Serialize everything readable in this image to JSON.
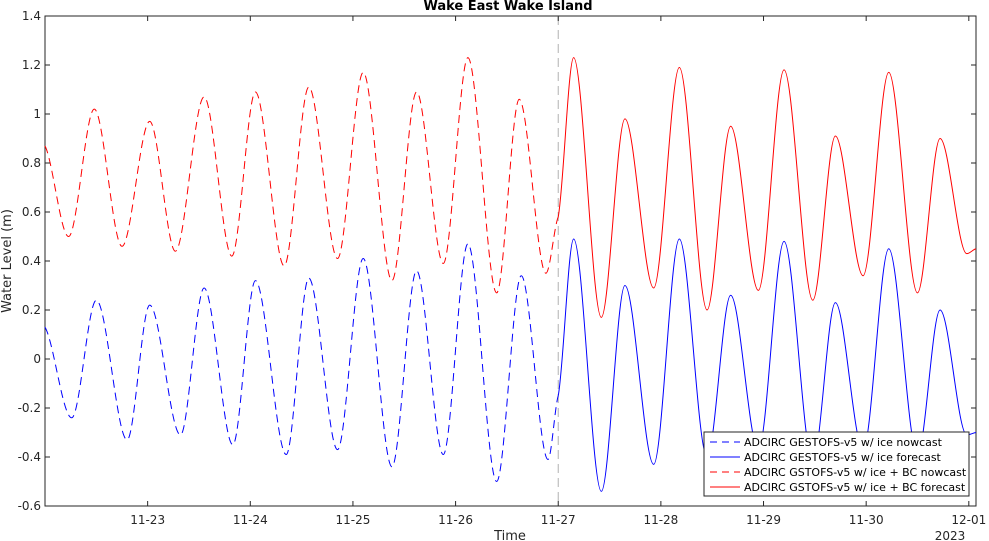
{
  "chart_data": {
    "type": "line",
    "title": "Wake East Wake Island",
    "xlabel": "Time",
    "ylabel": "Water Level (m)",
    "xlim_days_from_nov22": [
      0,
      9.07
    ],
    "ylim": [
      -0.6,
      1.4
    ],
    "yticks": [
      -0.6,
      -0.4,
      -0.2,
      0,
      0.2,
      0.4,
      0.6,
      0.8,
      1,
      1.2,
      1.4
    ],
    "xticks": [
      {
        "label": "11-23",
        "value": 1
      },
      {
        "label": "11-24",
        "value": 2
      },
      {
        "label": "11-25",
        "value": 3
      },
      {
        "label": "11-26",
        "value": 4
      },
      {
        "label": "11-27",
        "value": 5
      },
      {
        "label": "11-28",
        "value": 6
      },
      {
        "label": "11-29",
        "value": 7
      },
      {
        "label": "11-30",
        "value": 8
      },
      {
        "label": "12-01",
        "value": 9
      }
    ],
    "xaxis_year_label": "2023",
    "nowcast_forecast_boundary": 5,
    "legend_location": "bottom-right",
    "grid": false,
    "series": [
      {
        "name": "ADCIRC GESTOFS-v5 w/ ice nowcast",
        "color": "#0000ff",
        "style": "dashed",
        "x": [
          0.0,
          0.26,
          0.5,
          0.8,
          1.02,
          1.32,
          1.55,
          1.83,
          2.05,
          2.35,
          2.57,
          2.85,
          3.1,
          3.38,
          3.62,
          3.88,
          4.12,
          4.4,
          4.64,
          4.9,
          5.0
        ],
        "y": [
          0.13,
          -0.24,
          0.24,
          -0.33,
          0.22,
          -0.31,
          0.29,
          -0.35,
          0.32,
          -0.39,
          0.33,
          -0.37,
          0.41,
          -0.44,
          0.36,
          -0.39,
          0.47,
          -0.5,
          0.34,
          -0.41,
          -0.15
        ]
      },
      {
        "name": "ADCIRC GESTOFS-v5 w/ ice forecast",
        "color": "#0000ff",
        "style": "solid",
        "x": [
          5.0,
          5.15,
          5.42,
          5.65,
          5.93,
          6.18,
          6.45,
          6.68,
          6.95,
          7.2,
          7.48,
          7.7,
          7.97,
          8.22,
          8.5,
          8.72,
          8.98,
          9.07
        ],
        "y": [
          -0.15,
          0.49,
          -0.54,
          0.3,
          -0.43,
          0.49,
          -0.4,
          0.26,
          -0.37,
          0.48,
          -0.42,
          0.23,
          -0.37,
          0.45,
          -0.39,
          0.2,
          -0.31,
          -0.3
        ]
      },
      {
        "name": "ADCIRC GSTOFS-v5 w/ ice + BC nowcast",
        "color": "#ff0000",
        "style": "dashed",
        "x": [
          0.0,
          0.23,
          0.48,
          0.75,
          1.02,
          1.27,
          1.55,
          1.82,
          2.05,
          2.33,
          2.57,
          2.85,
          3.1,
          3.38,
          3.62,
          3.88,
          4.12,
          4.4,
          4.62,
          4.88,
          5.0
        ],
        "y": [
          0.87,
          0.5,
          1.02,
          0.46,
          0.97,
          0.44,
          1.07,
          0.42,
          1.09,
          0.38,
          1.11,
          0.41,
          1.17,
          0.32,
          1.09,
          0.39,
          1.23,
          0.27,
          1.06,
          0.35,
          0.58
        ]
      },
      {
        "name": "ADCIRC GSTOFS-v5 w/ ice + BC forecast",
        "color": "#ff0000",
        "style": "solid",
        "x": [
          5.0,
          5.15,
          5.42,
          5.65,
          5.93,
          6.18,
          6.45,
          6.68,
          6.95,
          7.2,
          7.48,
          7.7,
          7.97,
          8.22,
          8.5,
          8.72,
          8.98,
          9.07
        ],
        "y": [
          0.58,
          1.23,
          0.17,
          0.98,
          0.29,
          1.19,
          0.2,
          0.95,
          0.28,
          1.18,
          0.24,
          0.91,
          0.34,
          1.17,
          0.27,
          0.9,
          0.43,
          0.45
        ]
      }
    ]
  }
}
